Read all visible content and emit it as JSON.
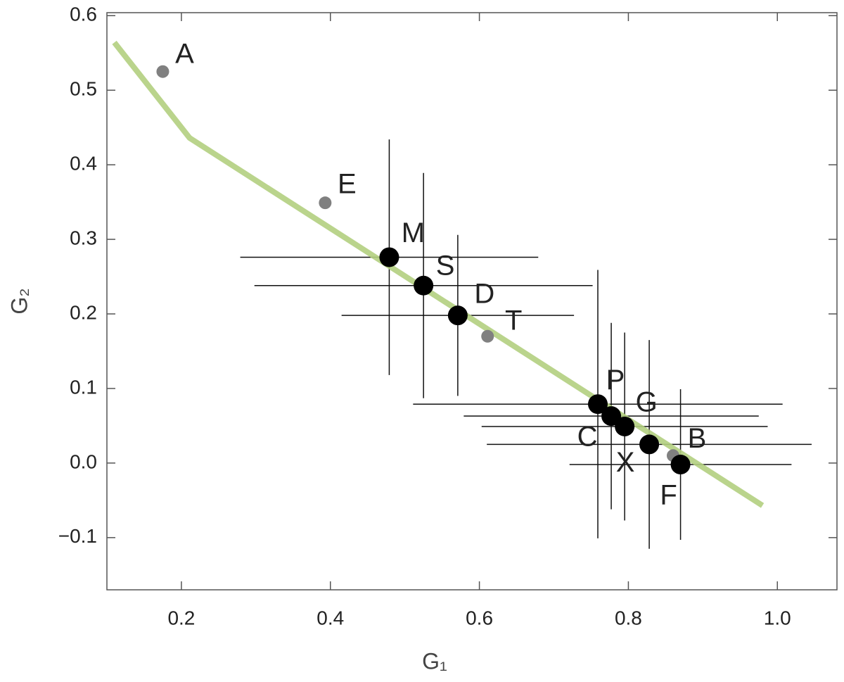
{
  "chart_data": {
    "type": "scatter",
    "xlabel": "G₁",
    "ylabel": "G₂",
    "xlim": [
      0.1,
      1.08
    ],
    "ylim": [
      -0.17,
      0.604
    ],
    "xticks": [
      0.2,
      0.4,
      0.6,
      0.8,
      {
        "value": 1,
        "label": "1.0"
      }
    ],
    "yticks": [
      {
        "value": -0.1,
        "label": "−0.1"
      },
      {
        "value": 0,
        "label": "0.0"
      },
      0.1,
      0.2,
      0.3,
      0.4,
      0.5,
      0.6
    ],
    "grid": false,
    "series": [
      {
        "color": "#808080",
        "labels": [
          "A",
          "E",
          "T",
          "B"
        ],
        "x": [
          0.175,
          0.393,
          0.611,
          0.86
        ],
        "values": [
          0.525,
          0.349,
          0.17,
          0.01
        ]
      },
      {
        "color": "#000000",
        "labels": [
          "M",
          "S",
          "D",
          "P",
          "C",
          "G",
          "X",
          "F"
        ],
        "x": [
          0.479,
          0.525,
          0.571,
          0.759,
          0.777,
          0.795,
          0.828,
          0.87
        ],
        "values": [
          0.276,
          0.238,
          0.198,
          0.079,
          0.063,
          0.049,
          0.025,
          -0.002
        ],
        "xerr": [
          0.2,
          0.227,
          0.156,
          0.248,
          0.198,
          0.192,
          0.218,
          0.149
        ],
        "yerr": [
          0.158,
          0.151,
          0.108,
          0.18,
          0.125,
          0.126,
          0.14,
          0.101
        ]
      }
    ],
    "line": {
      "color": "#b3cf7f",
      "x": [
        0.11,
        0.211,
        0.98
      ],
      "values": [
        0.564,
        0.436,
        -0.057
      ]
    }
  }
}
